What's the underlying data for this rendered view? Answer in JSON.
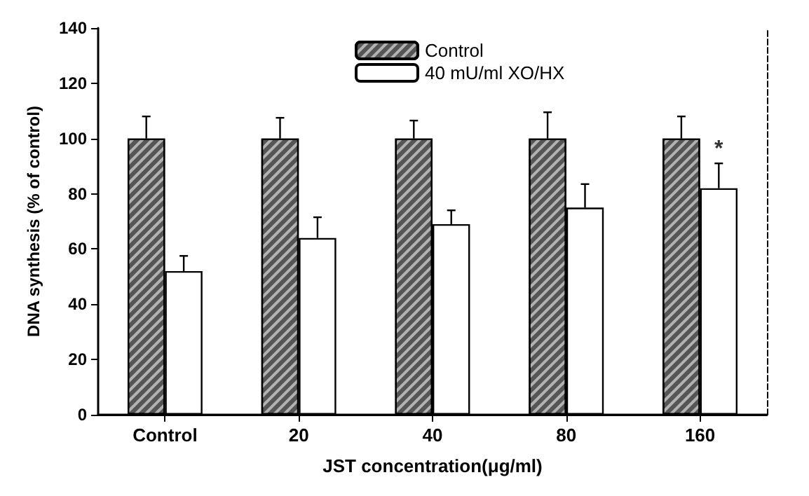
{
  "chart_data": {
    "type": "bar",
    "xlabel": "JST concentration(μg/ml)",
    "ylabel": "DNA synthesis (% of control)",
    "categories": [
      "Control",
      "20",
      "40",
      "80",
      "160"
    ],
    "series": [
      {
        "name": "Control",
        "color": "#555555",
        "values": [
          100,
          100,
          100,
          100,
          100
        ],
        "errors": [
          [
            100,
            108
          ],
          [
            100,
            107.5
          ],
          [
            100,
            106.5
          ],
          [
            100,
            109.5
          ],
          [
            100,
            108
          ]
        ]
      },
      {
        "name": "40 mU/ml XO/HX",
        "color": "#ffffff",
        "values": [
          52,
          64,
          69,
          75,
          82
        ],
        "errors": [
          [
            52,
            57.5
          ],
          [
            64,
            71.5
          ],
          [
            69,
            74
          ],
          [
            75,
            83.5
          ],
          [
            82,
            91
          ]
        ]
      }
    ],
    "ylim": [
      0,
      140
    ],
    "yticks": [
      0,
      20,
      40,
      60,
      80,
      100,
      120,
      140
    ],
    "grid": false,
    "legend": "top",
    "annotations": [
      {
        "text": "*",
        "x": "160",
        "y": 96
      }
    ]
  }
}
